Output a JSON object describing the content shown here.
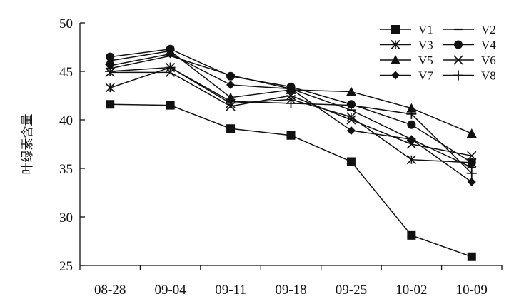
{
  "chart_data": {
    "type": "line",
    "x": [
      "08-28",
      "09-04",
      "09-11",
      "09-18",
      "09-25",
      "10-02",
      "10-09"
    ],
    "ylabel": "叶绿素含量",
    "xlabel": "",
    "title": "",
    "ylim": [
      25,
      50
    ],
    "yticks": [
      25,
      30,
      35,
      40,
      45,
      50
    ],
    "grid": false,
    "legend_position": "top-right",
    "series": [
      {
        "name": "V1",
        "marker": "square",
        "values": [
          41.6,
          41.5,
          39.1,
          38.4,
          35.7,
          28.1,
          25.9
        ]
      },
      {
        "name": "V2",
        "marker": "dash",
        "values": [
          45.3,
          46.6,
          44.6,
          43.2,
          41.0,
          38.0,
          35.1
        ]
      },
      {
        "name": "V3",
        "marker": "asterisk",
        "values": [
          43.3,
          45.4,
          41.7,
          42.1,
          40.3,
          35.9,
          35.6
        ]
      },
      {
        "name": "V4",
        "marker": "circle",
        "values": [
          46.5,
          47.3,
          44.5,
          43.4,
          41.6,
          39.5,
          35.6
        ]
      },
      {
        "name": "V5",
        "marker": "triangle",
        "values": [
          46.1,
          47.1,
          42.3,
          43.1,
          42.9,
          41.2,
          38.6
        ]
      },
      {
        "name": "V6",
        "marker": "x",
        "values": [
          44.9,
          44.9,
          41.4,
          42.5,
          40.0,
          37.5,
          36.3
        ]
      },
      {
        "name": "V7",
        "marker": "diamond",
        "values": [
          45.6,
          46.8,
          43.6,
          43.2,
          38.9,
          38.0,
          33.6
        ]
      },
      {
        "name": "V8",
        "marker": "plus",
        "values": [
          45.0,
          45.4,
          41.9,
          41.7,
          41.5,
          40.6,
          34.5
        ]
      }
    ]
  }
}
